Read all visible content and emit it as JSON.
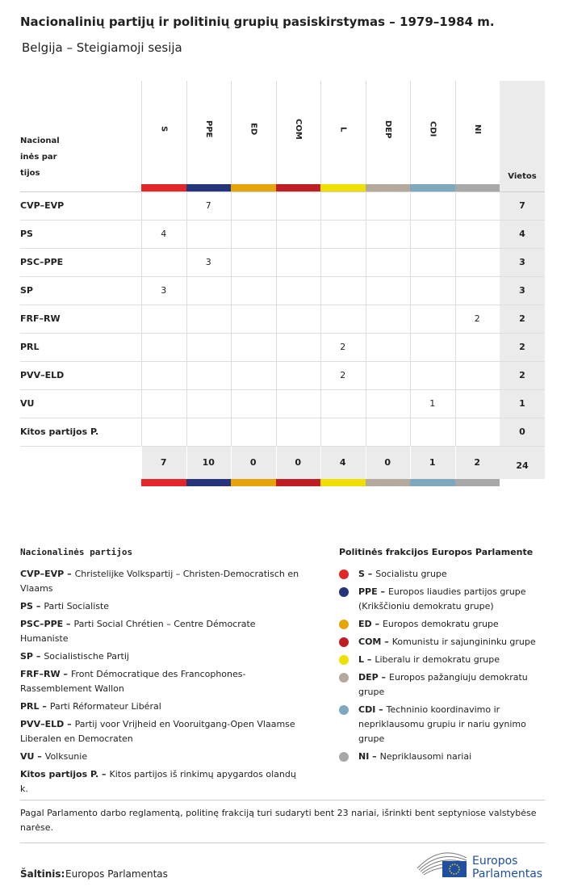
{
  "header": {
    "title": "Nacionalinių partijų ir politinių grupių pasiskirstymas – 1979–1984 m.",
    "subtitle": "Belgija – Steigiamoji sesija"
  },
  "table": {
    "row_header": "Nacionalinės partijos",
    "total_header": "Vietos",
    "groups": [
      {
        "name": "S",
        "color": "#e3262a"
      },
      {
        "name": "PPE",
        "color": "#263479"
      },
      {
        "name": "ED",
        "color": "#e5a50a"
      },
      {
        "name": "COM",
        "color": "#be1e24"
      },
      {
        "name": "L",
        "color": "#f0e000"
      },
      {
        "name": "DEP",
        "color": "#b3a99d"
      },
      {
        "name": "CDI",
        "color": "#7fa8bf"
      },
      {
        "name": "NI",
        "color": "#a8a8a8"
      }
    ],
    "rows": [
      {
        "party": "CVP–EVP",
        "cells": [
          null,
          7,
          null,
          null,
          null,
          null,
          null,
          null
        ],
        "total": 7
      },
      {
        "party": "PS",
        "cells": [
          4,
          null,
          null,
          null,
          null,
          null,
          null,
          null
        ],
        "total": 4
      },
      {
        "party": "PSC–PPE",
        "cells": [
          null,
          3,
          null,
          null,
          null,
          null,
          null,
          null
        ],
        "total": 3
      },
      {
        "party": "SP",
        "cells": [
          3,
          null,
          null,
          null,
          null,
          null,
          null,
          null
        ],
        "total": 3
      },
      {
        "party": "FRF–RW",
        "cells": [
          null,
          null,
          null,
          null,
          null,
          null,
          null,
          2
        ],
        "total": 2
      },
      {
        "party": "PRL",
        "cells": [
          null,
          null,
          null,
          null,
          2,
          null,
          null,
          null
        ],
        "total": 2
      },
      {
        "party": "PVV–ELD",
        "cells": [
          null,
          null,
          null,
          null,
          2,
          null,
          null,
          null
        ],
        "total": 2
      },
      {
        "party": "VU",
        "cells": [
          null,
          null,
          null,
          null,
          null,
          null,
          1,
          null
        ],
        "total": 1
      },
      {
        "party": "Kitos partijos P.",
        "cells": [
          null,
          null,
          null,
          null,
          null,
          null,
          null,
          null
        ],
        "total": 0
      }
    ],
    "totals": [
      7,
      10,
      0,
      0,
      4,
      0,
      1,
      2
    ],
    "grand_total": 24
  },
  "legend_parties": {
    "title": "Nacionalinės partijos",
    "items": [
      {
        "abbr": "CVP–EVP –",
        "text": "Christelijke Volkspartij – Christen-Democratisch en Vlaams"
      },
      {
        "abbr": "PS –",
        "text": "Parti Socialiste"
      },
      {
        "abbr": "PSC–PPE –",
        "text": "Parti Social Chrétien – Centre Démocrate Humaniste"
      },
      {
        "abbr": "SP –",
        "text": "Socialistische Partij"
      },
      {
        "abbr": "FRF–RW –",
        "text": "Front Démocratique des Francophones-Rassemblement Wallon"
      },
      {
        "abbr": "PRL –",
        "text": "Parti Réformateur Libéral"
      },
      {
        "abbr": "PVV–ELD –",
        "text": "Partij voor Vrijheid en Vooruitgang-Open Vlaamse Liberalen en Democraten"
      },
      {
        "abbr": "VU –",
        "text": "Volksunie"
      },
      {
        "abbr": "Kitos partijos P. –",
        "text": "Kitos partijos iš rinkimų apygardos olandų k."
      }
    ]
  },
  "legend_groups": {
    "title": "Politinės frakcijos Europos Parlamente",
    "items": [
      {
        "abbr": "S –",
        "text": "Socialistu grupe"
      },
      {
        "abbr": "PPE –",
        "text": "Europos liaudies partijos grupe (Krikščioniu demokratu grupe)"
      },
      {
        "abbr": "ED –",
        "text": "Europos demokratu grupe"
      },
      {
        "abbr": "COM –",
        "text": "Komunistu ir sajungininku grupe"
      },
      {
        "abbr": "L –",
        "text": "Liberalu ir demokratu grupe"
      },
      {
        "abbr": "DEP –",
        "text": "Europos pažangiuju demokratu grupe"
      },
      {
        "abbr": "CDI –",
        "text": "Techninio koordinavimo ir nepriklausomu grupiu ir nariu gynimo grupe"
      },
      {
        "abbr": "NI –",
        "text": "Nepriklausomi nariai"
      }
    ]
  },
  "footer": {
    "note": "Pagal Parlamento darbo reglamentą, politinę frakciją turi sudaryti bent 23 nariai, išrinkti bent septyniose valstybėse narėse.",
    "source_label": "Šaltinis:",
    "source": "Europos Parlamentas",
    "logo_lines": [
      "Europos",
      "Parlamentas"
    ]
  }
}
